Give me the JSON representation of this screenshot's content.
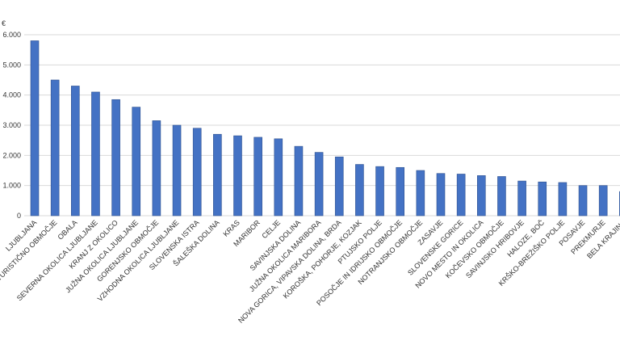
{
  "chart_data": {
    "type": "bar",
    "unit_label": "€",
    "categories": [
      "LJUBLJANA",
      "TURISTIČNO OBMOČJE",
      "OBALA",
      "SEVERNA OKOLICA LJUBLJANE",
      "KRANJ Z OKOLICO",
      "JUŽNA OKOLICA LJUBLJANE",
      "GORENJSKO OBMOČJE",
      "VZHODNA OKOLICA LJUBLJANE",
      "SLOVENSKA ISTRA",
      "ŠALEŠKA DOLINA",
      "KRAS",
      "MARIBOR",
      "CELJE",
      "SAVINJSKA DOLINA",
      "JUŽNA OKOLICA MARIBORA",
      "NOVA GORICA, VIPAVSKA DOLINA, BRDA",
      "KOROŠKA, POHORJE, KOZJAK",
      "PTUJSKO POLJE",
      "POSOČJE IN IDRIJSKO OBMOČJE",
      "NOTRANJSKO OBMOČJE",
      "ZASAVJE",
      "SLOVENSKE GORICE",
      "NOVO MESTO IN OKOLICA",
      "KOČEVSKO OBMOČJE",
      "SAVINJSKO HRIBOVJE",
      "HALOZE, BOČ",
      "KRŠKO-BREŽIŠKO POLJE",
      "POSAVJE",
      "PREKMURJE",
      "BELA KRAJINA"
    ],
    "values": [
      5800,
      4500,
      4300,
      4100,
      3850,
      3600,
      3150,
      3000,
      2900,
      2700,
      2650,
      2600,
      2550,
      2300,
      2100,
      1950,
      1700,
      1630,
      1600,
      1500,
      1400,
      1380,
      1330,
      1300,
      1150,
      1120,
      1100,
      1000,
      1000,
      800
    ],
    "color": "#4472c4",
    "ylim": [
      0,
      6000
    ],
    "yticks": [
      0,
      {
        "value": 1000,
        "label": "1.000"
      },
      {
        "value": 2000,
        "label": "2.000"
      },
      {
        "value": 3000,
        "label": "3.000"
      },
      {
        "value": 4000,
        "label": "4.000"
      },
      {
        "value": 5000,
        "label": "5.000"
      },
      {
        "value": 6000,
        "label": "6.000"
      }
    ],
    "grid": true
  }
}
